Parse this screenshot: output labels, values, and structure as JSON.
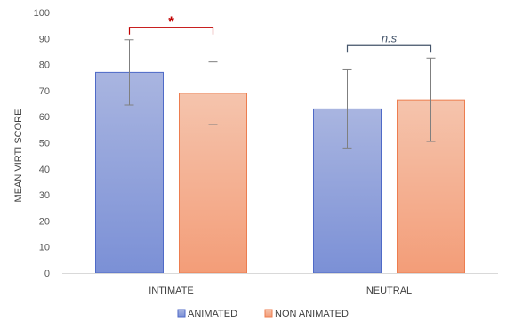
{
  "chart_data": {
    "type": "bar",
    "ylabel": "MEAN VIRTI SCORE",
    "xlabel": "",
    "ylim": [
      0,
      100
    ],
    "yticks": [
      0,
      10,
      20,
      30,
      40,
      50,
      60,
      70,
      80,
      90,
      100
    ],
    "categories": [
      "INTIMATE",
      "NEUTRAL"
    ],
    "series": [
      {
        "name": "ANIMATED",
        "values": [
          77,
          63
        ],
        "error": [
          12.5,
          15
        ],
        "color_top": "#a9b5e0",
        "color_bottom": "#7b90d6",
        "stroke": "#4f6ac7"
      },
      {
        "name": "NON ANIMATED",
        "values": [
          69,
          66.5
        ],
        "error": [
          12,
          16
        ],
        "color_top": "#f5c4ad",
        "color_bottom": "#f39d78",
        "stroke": "#ed7d4f"
      }
    ],
    "grid": false,
    "legend_position": "bottom",
    "annotations": [
      {
        "category": "INTIMATE",
        "label": "*",
        "color": "#c00000",
        "style": "significant"
      },
      {
        "category": "NEUTRAL",
        "label": "n.s",
        "color": "#44546a",
        "style": "not-significant"
      }
    ]
  }
}
